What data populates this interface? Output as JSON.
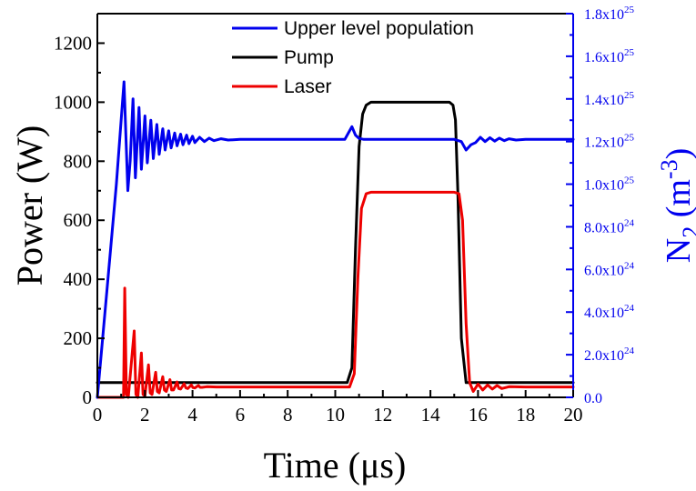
{
  "chart_data": {
    "type": "line",
    "xlabel": "Time (μs)",
    "ylabel_left": "Power (W)",
    "ylabel_right_main": "N",
    "ylabel_right_sub": "2",
    "ylabel_right_rest": " (m",
    "ylabel_right_sup": "-3",
    "ylabel_right_close": ")",
    "xlim": [
      0,
      20
    ],
    "ylim_left": [
      0,
      1300
    ],
    "ylim_right": [
      0,
      1.8e+25
    ],
    "x_ticks": [
      "0",
      "2",
      "4",
      "6",
      "8",
      "10",
      "12",
      "14",
      "16",
      "18",
      "20"
    ],
    "y_left_ticks": [
      "0",
      "200",
      "400",
      "600",
      "800",
      "1000",
      "1200"
    ],
    "y_right_ticks": [
      {
        "mant": "0.0",
        "exp": ""
      },
      {
        "mant": "2.0x10",
        "exp": "24"
      },
      {
        "mant": "4.0x10",
        "exp": "24"
      },
      {
        "mant": "6.0x10",
        "exp": "24"
      },
      {
        "mant": "8.0x10",
        "exp": "24"
      },
      {
        "mant": "1.0x10",
        "exp": "25"
      },
      {
        "mant": "1.2x10",
        "exp": "25"
      },
      {
        "mant": "1.4x10",
        "exp": "25"
      },
      {
        "mant": "1.6x10",
        "exp": "25"
      },
      {
        "mant": "1.8x10",
        "exp": "25"
      }
    ],
    "legend_position": "top-center",
    "series": [
      {
        "name": "Upper level population",
        "color": "#0000ee",
        "axis": "right",
        "x": [
          0,
          0.4,
          0.8,
          1.12,
          1.28,
          1.38,
          1.5,
          1.6,
          1.75,
          1.85,
          2.0,
          2.1,
          2.25,
          2.35,
          2.5,
          2.6,
          2.75,
          2.85,
          3.0,
          3.1,
          3.25,
          3.35,
          3.5,
          3.6,
          3.75,
          3.85,
          4.0,
          4.1,
          4.3,
          4.5,
          4.7,
          4.9,
          5.2,
          5.5,
          6.0,
          8.0,
          10.4,
          10.7,
          10.85,
          11.0,
          11.2,
          11.6,
          15.0,
          15.3,
          15.5,
          15.7,
          15.9,
          16.1,
          16.3,
          16.5,
          16.7,
          16.9,
          17.1,
          17.3,
          17.6,
          18.0,
          20.0
        ],
        "values": [
          0,
          5e+24,
          1e+25,
          1.48e+25,
          9.7e+24,
          1.11e+25,
          1.4e+25,
          1.03e+25,
          1.36e+25,
          1.07e+25,
          1.32e+25,
          1.1e+25,
          1.3e+25,
          1.12e+25,
          1.28e+25,
          1.14e+25,
          1.26e+25,
          1.16e+25,
          1.25e+25,
          1.17e+25,
          1.24e+25,
          1.18e+25,
          1.235e+25,
          1.185e+25,
          1.23e+25,
          1.19e+25,
          1.225e+25,
          1.195e+25,
          1.22e+25,
          1.2e+25,
          1.216e+25,
          1.204e+25,
          1.213e+25,
          1.207e+25,
          1.21e+25,
          1.21e+25,
          1.21e+25,
          1.27e+25,
          1.23e+25,
          1.215e+25,
          1.21e+25,
          1.21e+25,
          1.21e+25,
          1.2e+25,
          1.16e+25,
          1.185e+25,
          1.195e+25,
          1.22e+25,
          1.2e+25,
          1.218e+25,
          1.202e+25,
          1.216e+25,
          1.204e+25,
          1.213e+25,
          1.207e+25,
          1.21e+25,
          1.21e+25
        ]
      },
      {
        "name": "Pump",
        "color": "#000000",
        "axis": "left",
        "x": [
          0,
          10.5,
          10.7,
          10.85,
          11.0,
          11.15,
          11.3,
          11.5,
          14.8,
          14.95,
          15.05,
          15.15,
          15.3,
          15.5,
          20
        ],
        "values": [
          50,
          50,
          100,
          500,
          850,
          960,
          990,
          1000,
          1000,
          990,
          940,
          700,
          200,
          50,
          50
        ]
      },
      {
        "name": "Laser",
        "color": "#ee0000",
        "axis": "left",
        "x": [
          0,
          1.1,
          1.15,
          1.22,
          1.3,
          1.55,
          1.62,
          1.7,
          1.85,
          1.92,
          2.0,
          2.15,
          2.22,
          2.3,
          2.45,
          2.52,
          2.6,
          2.75,
          2.82,
          2.9,
          3.05,
          3.12,
          3.2,
          3.35,
          3.42,
          3.5,
          3.65,
          3.72,
          3.8,
          3.95,
          4.02,
          4.1,
          4.25,
          4.32,
          4.4,
          4.6,
          5.0,
          6.0,
          10.6,
          10.8,
          10.95,
          11.1,
          11.3,
          11.5,
          15.0,
          15.2,
          15.35,
          15.5,
          15.65,
          15.8,
          16.0,
          16.2,
          16.4,
          16.6,
          16.8,
          17.0,
          17.3,
          18.0,
          20.0
        ],
        "values": [
          0,
          0,
          370,
          10,
          0,
          225,
          10,
          0,
          150,
          10,
          5,
          110,
          15,
          10,
          85,
          20,
          15,
          70,
          25,
          20,
          60,
          25,
          25,
          52,
          30,
          28,
          46,
          32,
          30,
          42,
          33,
          32,
          40,
          34,
          34,
          36,
          35,
          35,
          35,
          80,
          400,
          640,
          690,
          695,
          695,
          690,
          600,
          250,
          50,
          20,
          45,
          25,
          42,
          28,
          40,
          30,
          36,
          35,
          35
        ]
      }
    ]
  }
}
